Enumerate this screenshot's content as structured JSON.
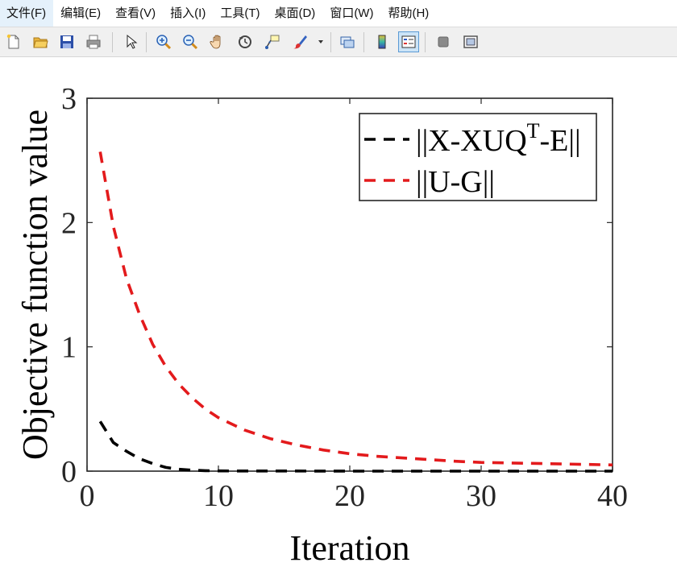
{
  "menu": {
    "items": [
      "文件(F)",
      "编辑(E)",
      "查看(V)",
      "插入(I)",
      "工具(T)",
      "桌面(D)",
      "窗口(W)",
      "帮助(H)"
    ]
  },
  "toolbar": {
    "icons": [
      "new-figure-icon",
      "open-file-icon",
      "save-icon",
      "print-icon",
      "pointer-icon",
      "zoom-in-icon",
      "zoom-out-icon",
      "pan-hand-icon",
      "rotate-3d-icon",
      "data-cursor-icon",
      "brush-icon",
      "brush-dropdown-icon",
      "link-plot-icon",
      "colorbar-icon",
      "legend-icon",
      "hide-plot-tools-icon",
      "show-plot-tools-icon"
    ]
  },
  "colors": {
    "series1": "#000000",
    "series2": "#e31a1c",
    "toolbar_bg": "#f0f0f0"
  },
  "chart_data": {
    "type": "line",
    "xlabel": "Iteration",
    "ylabel": "Objective function value",
    "xlim": [
      0,
      40
    ],
    "ylim": [
      0,
      3
    ],
    "xticks": [
      0,
      10,
      20,
      30,
      40
    ],
    "yticks": [
      0,
      1,
      2,
      3
    ],
    "grid": false,
    "legend_position": "top-right",
    "line_style": "dashed",
    "series": [
      {
        "name": "||X-XUQ^T-E||",
        "name_main": "||X-XUQ",
        "name_sup": "T",
        "name_tail": "-E||",
        "color": "#000000",
        "x": [
          1,
          2,
          3,
          4,
          5,
          6,
          7,
          8,
          9,
          10,
          12,
          15,
          20,
          25,
          30,
          35,
          40
        ],
        "y": [
          0.4,
          0.23,
          0.16,
          0.1,
          0.06,
          0.03,
          0.015,
          0.008,
          0.004,
          0.002,
          0.001,
          0.001,
          0.0,
          0.0,
          0.0,
          0.0,
          0.0
        ]
      },
      {
        "name": "||U-G||",
        "color": "#e31a1c",
        "x": [
          1,
          2,
          3,
          4,
          5,
          6,
          7,
          8,
          9,
          10,
          12,
          14,
          16,
          18,
          20,
          22,
          25,
          28,
          30,
          35,
          40
        ],
        "y": [
          2.57,
          1.97,
          1.55,
          1.26,
          1.02,
          0.84,
          0.7,
          0.59,
          0.5,
          0.43,
          0.33,
          0.26,
          0.21,
          0.17,
          0.14,
          0.12,
          0.1,
          0.08,
          0.07,
          0.06,
          0.05
        ]
      }
    ]
  }
}
